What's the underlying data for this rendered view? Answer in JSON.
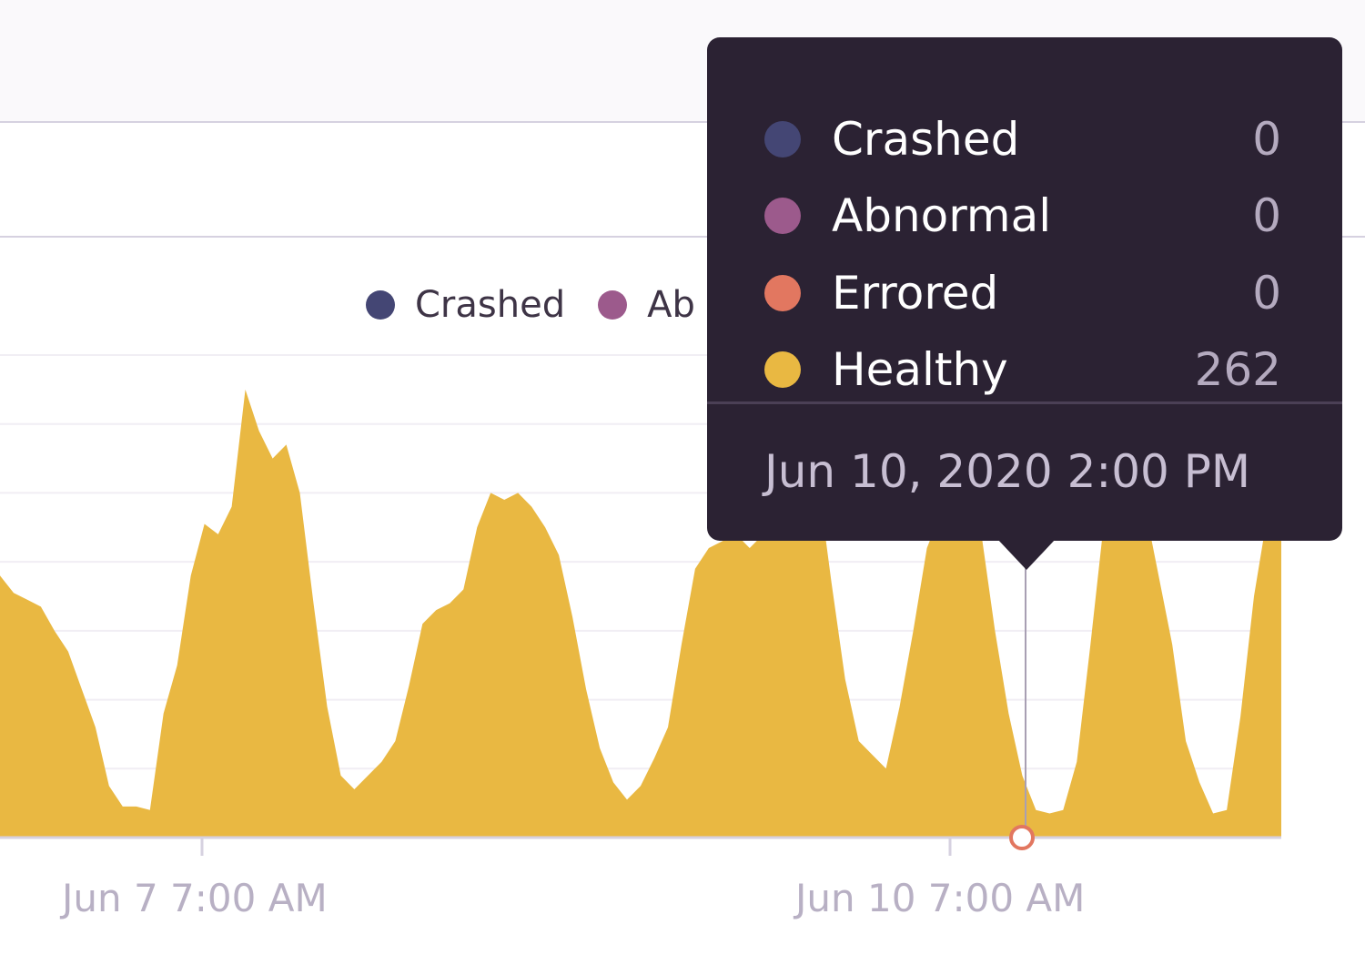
{
  "colors": {
    "crashed": "#444674",
    "abnormal": "#9c5a8c",
    "errored": "#e27760",
    "healthy": "#e9b842",
    "tooltip_bg": "#2b2233",
    "axis_text": "#b8b0c4"
  },
  "legend": {
    "items": [
      {
        "label": "Crashed",
        "color": "#444674"
      },
      {
        "label": "Ab",
        "color": "#9c5a8c"
      }
    ]
  },
  "tooltip": {
    "rows": [
      {
        "label": "Crashed",
        "value": "0",
        "color": "#444674"
      },
      {
        "label": "Abnormal",
        "value": "0",
        "color": "#9c5a8c"
      },
      {
        "label": "Errored",
        "value": "0",
        "color": "#e27760"
      },
      {
        "label": "Healthy",
        "value": "262",
        "color": "#e9b842"
      }
    ],
    "date": "Jun 10, 2020 2:00 PM"
  },
  "chart_data": {
    "type": "area",
    "x_ticks": [
      "Jun 7 7:00 AM",
      "Jun 10 7:00 AM"
    ],
    "series": [
      {
        "name": "Healthy",
        "color": "#e9b842",
        "values": [
          380,
          355,
          345,
          335,
          300,
          270,
          215,
          160,
          75,
          45,
          45,
          40,
          180,
          250,
          380,
          455,
          440,
          480,
          650,
          590,
          550,
          570,
          500,
          340,
          190,
          90,
          70,
          90,
          110,
          140,
          220,
          310,
          330,
          340,
          360,
          450,
          500,
          490,
          500,
          480,
          450,
          410,
          320,
          215,
          130,
          80,
          55,
          75,
          115,
          160,
          280,
          390,
          420,
          430,
          440,
          420,
          440,
          500,
          630,
          660,
          520,
          370,
          230,
          140,
          120,
          100,
          190,
          300,
          420,
          470,
          490,
          470,
          440,
          300,
          180,
          90,
          40,
          35,
          40,
          110,
          280,
          460,
          500,
          520,
          480,
          380,
          280,
          140,
          80,
          35,
          40,
          175,
          350,
          470,
          480
        ]
      },
      {
        "name": "Crashed",
        "color": "#444674",
        "values": []
      },
      {
        "name": "Abnormal",
        "color": "#9c5a8c",
        "values": []
      },
      {
        "name": "Errored",
        "color": "#e27760",
        "values": []
      }
    ],
    "ylim": [
      0,
      700
    ],
    "grid": true,
    "highlight": {
      "date": "Jun 10, 2020 2:00 PM",
      "Healthy": 262,
      "Crashed": 0,
      "Abnormal": 0,
      "Errored": 0
    }
  }
}
